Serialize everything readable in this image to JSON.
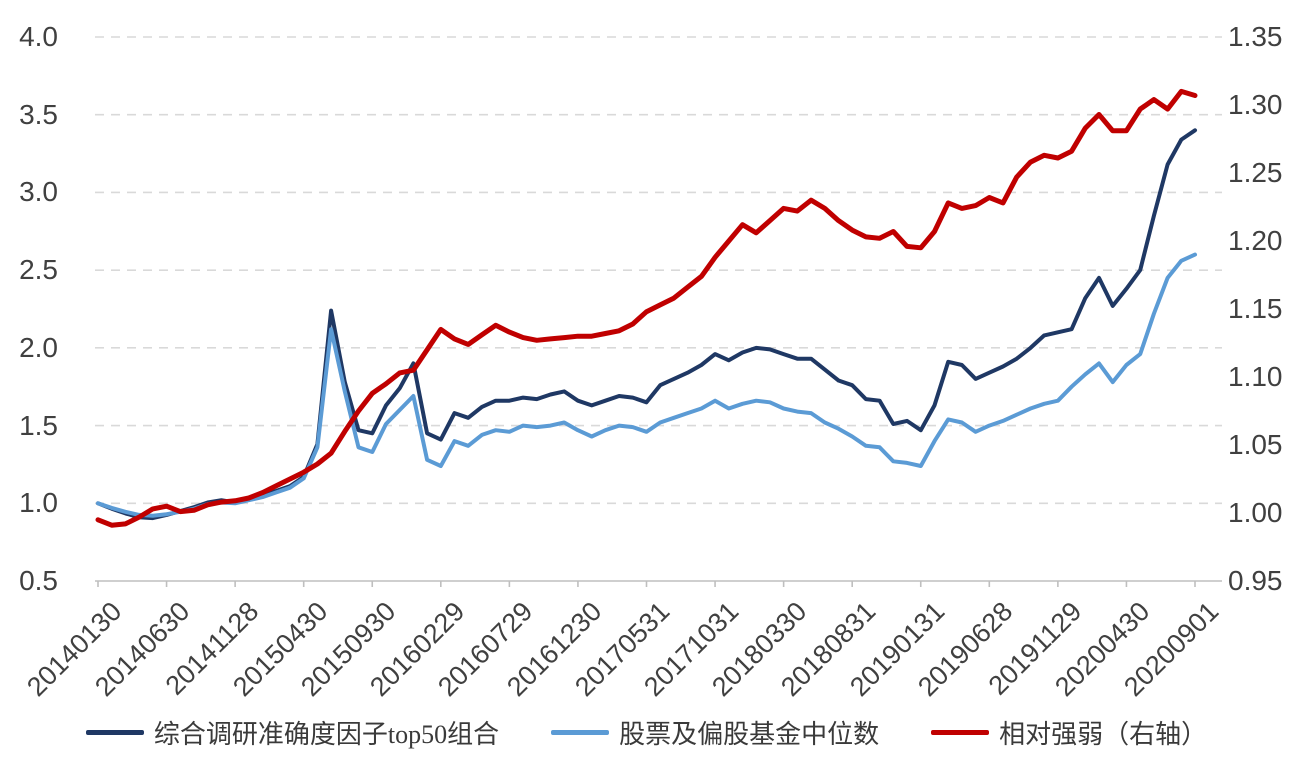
{
  "chart_data": {
    "type": "line",
    "title": "",
    "legend_position": "bottom",
    "grid": "horizontal-dashed",
    "x_tick_labels": [
      "20140130",
      "20140630",
      "20141128",
      "20150430",
      "20150930",
      "20160229",
      "20160729",
      "20161230",
      "20170531",
      "20171031",
      "20180330",
      "20180831",
      "20190131",
      "20190628",
      "20191129",
      "20200430",
      "20200901"
    ],
    "points_per_tick": 5,
    "left_axis": {
      "min": 0.5,
      "max": 4.0,
      "ticks": [
        "4.0",
        "3.5",
        "3.0",
        "2.5",
        "2.0",
        "1.5",
        "1.0",
        "0.5"
      ]
    },
    "right_axis": {
      "min": 0.95,
      "max": 1.35,
      "ticks": [
        "1.35",
        "1.30",
        "1.25",
        "1.20",
        "1.15",
        "1.10",
        "1.05",
        "1.00",
        "0.95"
      ]
    },
    "colors": {
      "gridline": "#d9d9d9",
      "axis": "#bfbfbf",
      "tick_text": "#404040"
    },
    "series": [
      {
        "name": "综合调研准确度因子top50组合",
        "axis": "left",
        "color": "#1f3864",
        "width": 4,
        "values": [
          1.0,
          0.965,
          0.935,
          0.91,
          0.905,
          0.925,
          0.95,
          0.975,
          1.005,
          1.02,
          1.005,
          1.03,
          1.055,
          1.08,
          1.11,
          1.17,
          1.38,
          2.24,
          1.78,
          1.47,
          1.45,
          1.63,
          1.74,
          1.9,
          1.45,
          1.41,
          1.58,
          1.55,
          1.62,
          1.66,
          1.66,
          1.68,
          1.67,
          1.7,
          1.72,
          1.66,
          1.63,
          1.66,
          1.69,
          1.68,
          1.65,
          1.76,
          1.8,
          1.84,
          1.89,
          1.96,
          1.92,
          1.97,
          2.0,
          1.99,
          1.96,
          1.93,
          1.93,
          1.86,
          1.79,
          1.76,
          1.67,
          1.66,
          1.51,
          1.53,
          1.47,
          1.63,
          1.91,
          1.89,
          1.8,
          1.84,
          1.88,
          1.93,
          2.0,
          2.08,
          2.1,
          2.12,
          2.32,
          2.45,
          2.27,
          2.38,
          2.5,
          2.85,
          3.18,
          3.34,
          3.4
        ]
      },
      {
        "name": "股票及偏股基金中位数",
        "axis": "left",
        "color": "#5b9bd5",
        "width": 4,
        "values": [
          1.0,
          0.97,
          0.945,
          0.925,
          0.92,
          0.93,
          0.945,
          0.965,
          0.995,
          1.005,
          1.0,
          1.02,
          1.04,
          1.07,
          1.1,
          1.16,
          1.36,
          2.12,
          1.72,
          1.36,
          1.33,
          1.51,
          1.6,
          1.69,
          1.28,
          1.24,
          1.4,
          1.37,
          1.44,
          1.47,
          1.46,
          1.5,
          1.49,
          1.5,
          1.52,
          1.47,
          1.43,
          1.47,
          1.5,
          1.49,
          1.46,
          1.52,
          1.55,
          1.58,
          1.61,
          1.66,
          1.61,
          1.64,
          1.66,
          1.65,
          1.61,
          1.59,
          1.58,
          1.52,
          1.48,
          1.43,
          1.37,
          1.36,
          1.27,
          1.26,
          1.24,
          1.4,
          1.54,
          1.52,
          1.46,
          1.5,
          1.53,
          1.57,
          1.61,
          1.64,
          1.66,
          1.75,
          1.83,
          1.9,
          1.78,
          1.89,
          1.96,
          2.22,
          2.45,
          2.56,
          2.6
        ]
      },
      {
        "name": "相对强弱（右轴）",
        "axis": "right",
        "color": "#c00000",
        "width": 5,
        "values": [
          0.995,
          0.991,
          0.992,
          0.997,
          1.003,
          1.005,
          1.001,
          1.002,
          1.006,
          1.008,
          1.009,
          1.011,
          1.015,
          1.02,
          1.025,
          1.03,
          1.036,
          1.044,
          1.06,
          1.075,
          1.088,
          1.095,
          1.103,
          1.105,
          1.12,
          1.135,
          1.128,
          1.124,
          1.131,
          1.138,
          1.133,
          1.129,
          1.127,
          1.128,
          1.129,
          1.13,
          1.13,
          1.132,
          1.134,
          1.139,
          1.148,
          1.153,
          1.158,
          1.166,
          1.174,
          1.188,
          1.2,
          1.212,
          1.206,
          1.215,
          1.224,
          1.222,
          1.23,
          1.224,
          1.215,
          1.208,
          1.203,
          1.202,
          1.207,
          1.196,
          1.195,
          1.207,
          1.228,
          1.224,
          1.226,
          1.232,
          1.228,
          1.247,
          1.258,
          1.263,
          1.261,
          1.266,
          1.283,
          1.293,
          1.281,
          1.281,
          1.297,
          1.304,
          1.297,
          1.31,
          1.307
        ]
      }
    ]
  }
}
